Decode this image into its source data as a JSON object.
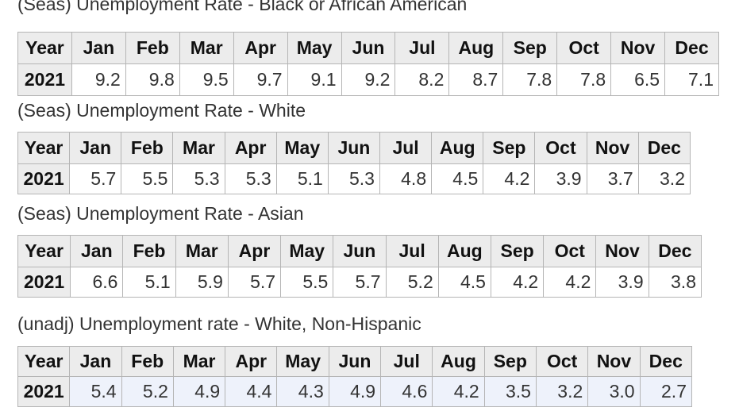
{
  "chart_data": [
    {
      "type": "table",
      "title": "(Seas) Unemployment Rate - Black or African American",
      "columns": [
        "Year",
        "Jan",
        "Feb",
        "Mar",
        "Apr",
        "May",
        "Jun",
        "Jul",
        "Aug",
        "Sep",
        "Oct",
        "Nov",
        "Dec"
      ],
      "rows": [
        [
          "2021",
          "9.2",
          "9.8",
          "9.5",
          "9.7",
          "9.1",
          "9.2",
          "8.2",
          "8.7",
          "7.8",
          "7.8",
          "6.5",
          "7.1"
        ]
      ]
    },
    {
      "type": "table",
      "title": "(Seas) Unemployment Rate - White",
      "columns": [
        "Year",
        "Jan",
        "Feb",
        "Mar",
        "Apr",
        "May",
        "Jun",
        "Jul",
        "Aug",
        "Sep",
        "Oct",
        "Nov",
        "Dec"
      ],
      "rows": [
        [
          "2021",
          "5.7",
          "5.5",
          "5.3",
          "5.3",
          "5.1",
          "5.3",
          "4.8",
          "4.5",
          "4.2",
          "3.9",
          "3.7",
          "3.2"
        ]
      ]
    },
    {
      "type": "table",
      "title": "(Seas) Unemployment Rate - Asian",
      "columns": [
        "Year",
        "Jan",
        "Feb",
        "Mar",
        "Apr",
        "May",
        "Jun",
        "Jul",
        "Aug",
        "Sep",
        "Oct",
        "Nov",
        "Dec"
      ],
      "rows": [
        [
          "2021",
          "6.6",
          "5.1",
          "5.9",
          "5.7",
          "5.5",
          "5.7",
          "5.2",
          "4.5",
          "4.2",
          "4.2",
          "3.9",
          "3.8"
        ]
      ]
    },
    {
      "type": "table",
      "title": "(unadj) Unemployment rate - White, Non-Hispanic",
      "columns": [
        "Year",
        "Jan",
        "Feb",
        "Mar",
        "Apr",
        "May",
        "Jun",
        "Jul",
        "Aug",
        "Sep",
        "Oct",
        "Nov",
        "Dec"
      ],
      "rows": [
        [
          "2021",
          "5.4",
          "5.2",
          "4.9",
          "4.4",
          "4.3",
          "4.9",
          "4.6",
          "4.2",
          "3.5",
          "3.2",
          "3.0",
          "2.7"
        ]
      ]
    }
  ],
  "colors": {
    "header_bg": "#ececec",
    "border": "#b5b5b5",
    "tinted_row_bg": "#eef2fb"
  }
}
